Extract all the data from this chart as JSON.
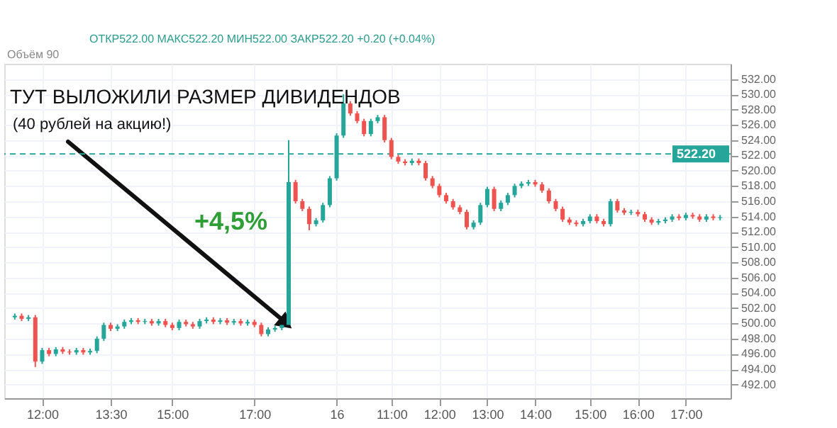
{
  "chart_data": {
    "type": "candlestick",
    "categories": [
      null,
      null,
      null,
      null,
      "12:00",
      null,
      null,
      null,
      null,
      null,
      null,
      null,
      null,
      null,
      "13:30",
      null,
      null,
      null,
      null,
      null,
      null,
      null,
      null,
      "15:00",
      null,
      null,
      null,
      null,
      null,
      null,
      null,
      null,
      null,
      null,
      null,
      "17:00",
      null,
      null,
      null,
      null,
      null,
      null,
      null,
      null,
      null,
      null,
      null,
      "16",
      null,
      null,
      null,
      null,
      null,
      null,
      null,
      "11:00",
      null,
      null,
      null,
      null,
      null,
      null,
      "12:00",
      null,
      null,
      null,
      null,
      null,
      null,
      "13:00",
      null,
      null,
      null,
      null,
      null,
      null,
      "14:00",
      null,
      null,
      null,
      null,
      null,
      null,
      null,
      "15:00",
      null,
      null,
      null,
      null,
      null,
      null,
      "16:00",
      null,
      null,
      null,
      null,
      null,
      null,
      "17:00",
      null,
      null,
      null,
      null,
      null
    ],
    "ohlc": [
      [
        500.8,
        501.3,
        500.5,
        501.0
      ],
      [
        501.0,
        501.3,
        500.3,
        500.6
      ],
      [
        500.6,
        501.1,
        500.3,
        500.8
      ],
      [
        500.8,
        501.1,
        494.3,
        495.0
      ],
      [
        495.0,
        496.8,
        494.7,
        496.5
      ],
      [
        496.5,
        496.8,
        495.7,
        496.0
      ],
      [
        496.0,
        496.9,
        495.7,
        496.6
      ],
      [
        496.6,
        496.9,
        496.0,
        496.3
      ],
      [
        496.3,
        496.6,
        495.9,
        496.2
      ],
      [
        496.2,
        496.8,
        495.9,
        496.5
      ],
      [
        496.5,
        496.8,
        495.9,
        496.2
      ],
      [
        496.2,
        496.7,
        495.9,
        496.4
      ],
      [
        496.4,
        498.3,
        496.1,
        498.0
      ],
      [
        498.0,
        500.1,
        497.7,
        499.8
      ],
      [
        499.8,
        500.1,
        499.0,
        499.3
      ],
      [
        499.3,
        499.9,
        499.0,
        499.6
      ],
      [
        499.6,
        500.5,
        499.3,
        500.2
      ],
      [
        500.2,
        500.7,
        499.9,
        500.4
      ],
      [
        500.4,
        500.7,
        499.9,
        500.2
      ],
      [
        500.2,
        500.6,
        499.9,
        500.3
      ],
      [
        500.3,
        500.6,
        499.7,
        500.0
      ],
      [
        500.0,
        500.6,
        499.7,
        500.3
      ],
      [
        500.3,
        500.6,
        499.5,
        499.8
      ],
      [
        499.8,
        500.1,
        499.1,
        499.4
      ],
      [
        499.4,
        500.5,
        499.1,
        500.2
      ],
      [
        500.2,
        500.5,
        499.6,
        499.9
      ],
      [
        499.9,
        500.2,
        499.3,
        499.6
      ],
      [
        499.6,
        500.6,
        499.3,
        500.3
      ],
      [
        500.3,
        500.8,
        500.0,
        500.5
      ],
      [
        500.5,
        500.8,
        499.9,
        500.2
      ],
      [
        500.2,
        500.7,
        499.9,
        500.4
      ],
      [
        500.4,
        500.7,
        499.8,
        500.1
      ],
      [
        500.1,
        500.6,
        499.8,
        500.3
      ],
      [
        500.3,
        500.6,
        499.7,
        500.0
      ],
      [
        500.0,
        500.5,
        499.7,
        500.2
      ],
      [
        500.2,
        500.5,
        499.5,
        499.8
      ],
      [
        499.8,
        500.1,
        498.3,
        498.6
      ],
      [
        498.6,
        499.5,
        498.3,
        499.2
      ],
      [
        499.2,
        499.7,
        498.9,
        499.4
      ],
      [
        499.4,
        500.1,
        499.1,
        499.8
      ],
      [
        499.8,
        524.0,
        499.5,
        518.5
      ],
      [
        518.5,
        518.8,
        515.7,
        516.0
      ],
      [
        516.0,
        516.3,
        514.7,
        515.0
      ],
      [
        515.0,
        515.3,
        512.2,
        513.0
      ],
      [
        513.0,
        513.8,
        512.7,
        513.5
      ],
      [
        513.5,
        515.8,
        513.2,
        515.5
      ],
      [
        515.5,
        519.3,
        515.2,
        519.0
      ],
      [
        519.0,
        524.9,
        518.7,
        524.6
      ],
      [
        524.6,
        530.0,
        524.3,
        528.8
      ],
      [
        528.8,
        529.1,
        527.2,
        527.5
      ],
      [
        527.5,
        527.8,
        526.2,
        526.5
      ],
      [
        526.5,
        526.8,
        524.5,
        524.8
      ],
      [
        524.8,
        526.8,
        524.5,
        526.5
      ],
      [
        526.5,
        527.3,
        526.2,
        527.0
      ],
      [
        527.0,
        527.3,
        523.7,
        524.0
      ],
      [
        524.0,
        524.3,
        521.5,
        521.8
      ],
      [
        521.8,
        522.1,
        520.9,
        521.2
      ],
      [
        521.2,
        521.5,
        520.7,
        521.0
      ],
      [
        521.0,
        521.6,
        520.7,
        521.3
      ],
      [
        521.3,
        521.6,
        520.7,
        521.0
      ],
      [
        521.0,
        521.3,
        518.7,
        519.0
      ],
      [
        519.0,
        519.3,
        517.7,
        518.0
      ],
      [
        518.0,
        518.3,
        516.5,
        516.8
      ],
      [
        516.8,
        517.1,
        515.7,
        516.0
      ],
      [
        516.0,
        516.3,
        514.9,
        515.2
      ],
      [
        515.2,
        515.5,
        514.3,
        514.6
      ],
      [
        514.6,
        514.9,
        512.3,
        512.6
      ],
      [
        512.6,
        513.5,
        512.3,
        513.2
      ],
      [
        513.2,
        515.8,
        512.9,
        515.5
      ],
      [
        515.5,
        517.9,
        515.2,
        517.6
      ],
      [
        517.6,
        517.9,
        514.7,
        515.0
      ],
      [
        515.0,
        516.1,
        514.7,
        515.8
      ],
      [
        515.8,
        517.1,
        515.5,
        516.8
      ],
      [
        516.8,
        518.3,
        516.5,
        518.0
      ],
      [
        518.0,
        518.6,
        517.7,
        518.3
      ],
      [
        518.3,
        518.8,
        518.0,
        518.5
      ],
      [
        518.5,
        518.8,
        517.9,
        518.2
      ],
      [
        518.2,
        518.5,
        517.1,
        517.4
      ],
      [
        517.4,
        517.7,
        515.7,
        516.0
      ],
      [
        516.0,
        516.3,
        514.7,
        515.0
      ],
      [
        515.0,
        515.3,
        513.3,
        513.6
      ],
      [
        513.6,
        513.9,
        512.9,
        513.2
      ],
      [
        513.2,
        513.5,
        512.7,
        513.0
      ],
      [
        513.0,
        513.7,
        512.7,
        513.4
      ],
      [
        513.4,
        514.3,
        513.1,
        514.0
      ],
      [
        514.0,
        514.3,
        513.1,
        513.4
      ],
      [
        513.4,
        513.7,
        512.7,
        513.0
      ],
      [
        513.0,
        516.3,
        512.7,
        516.0
      ],
      [
        516.0,
        516.3,
        514.5,
        514.8
      ],
      [
        514.8,
        515.1,
        514.2,
        514.5
      ],
      [
        514.5,
        514.9,
        514.2,
        514.6
      ],
      [
        514.6,
        514.9,
        514.0,
        514.3
      ],
      [
        514.3,
        514.6,
        513.3,
        513.6
      ],
      [
        513.6,
        513.9,
        512.9,
        513.2
      ],
      [
        513.2,
        513.7,
        512.9,
        513.4
      ],
      [
        513.4,
        513.9,
        513.1,
        513.6
      ],
      [
        513.6,
        514.3,
        513.3,
        514.0
      ],
      [
        514.0,
        514.3,
        513.5,
        513.8
      ],
      [
        513.8,
        514.5,
        513.5,
        514.2
      ],
      [
        514.2,
        514.5,
        513.7,
        514.0
      ],
      [
        514.0,
        514.3,
        513.3,
        513.6
      ],
      [
        513.6,
        514.3,
        513.3,
        514.0
      ],
      [
        514.0,
        514.3,
        513.5,
        513.8
      ],
      [
        513.8,
        514.2,
        513.5,
        513.9
      ]
    ],
    "colors": [
      "#26a69a",
      "#ef5350",
      "#26a69a",
      "#ef5350",
      "#26a69a",
      "#ef5350",
      "#26a69a",
      "#ef5350",
      "#ef5350",
      "#26a69a",
      "#ef5350",
      "#26a69a",
      "#26a69a",
      "#26a69a",
      "#ef5350",
      "#26a69a",
      "#26a69a",
      "#26a69a",
      "#ef5350",
      "#26a69a",
      "#ef5350",
      "#26a69a",
      "#ef5350",
      "#ef5350",
      "#26a69a",
      "#ef5350",
      "#ef5350",
      "#26a69a",
      "#26a69a",
      "#ef5350",
      "#26a69a",
      "#ef5350",
      "#26a69a",
      "#ef5350",
      "#26a69a",
      "#ef5350",
      "#ef5350",
      "#26a69a",
      "#26a69a",
      "#26a69a",
      "#26a69a",
      "#ef5350",
      "#ef5350",
      "#ef5350",
      "#26a69a",
      "#26a69a",
      "#26a69a",
      "#26a69a",
      "#26a69a",
      "#ef5350",
      "#ef5350",
      "#ef5350",
      "#26a69a",
      "#26a69a",
      "#ef5350",
      "#ef5350",
      "#ef5350",
      "#ef5350",
      "#26a69a",
      "#ef5350",
      "#ef5350",
      "#ef5350",
      "#ef5350",
      "#ef5350",
      "#ef5350",
      "#ef5350",
      "#ef5350",
      "#26a69a",
      "#26a69a",
      "#26a69a",
      "#ef5350",
      "#26a69a",
      "#26a69a",
      "#26a69a",
      "#26a69a",
      "#26a69a",
      "#ef5350",
      "#ef5350",
      "#ef5350",
      "#ef5350",
      "#ef5350",
      "#ef5350",
      "#ef5350",
      "#26a69a",
      "#26a69a",
      "#ef5350",
      "#ef5350",
      "#26a69a",
      "#ef5350",
      "#ef5350",
      "#26a69a",
      "#ef5350",
      "#ef5350",
      "#ef5350",
      "#26a69a",
      "#26a69a",
      "#26a69a",
      "#ef5350",
      "#26a69a",
      "#ef5350",
      "#ef5350",
      "#26a69a",
      "#ef5350",
      "#26a69a"
    ],
    "ylim": [
      490.2,
      534
    ],
    "yticks": [
      {
        "value": 492,
        "label": "492.00"
      },
      {
        "value": 494,
        "label": "494.00"
      },
      {
        "value": 496,
        "label": "496.00"
      },
      {
        "value": 498,
        "label": "498.00"
      },
      {
        "value": 500,
        "label": "500.00"
      },
      {
        "value": 502,
        "label": "502.00"
      },
      {
        "value": 504,
        "label": "504.00"
      },
      {
        "value": 506,
        "label": "506.00"
      },
      {
        "value": 508,
        "label": "508.00"
      },
      {
        "value": 510,
        "label": "510.00"
      },
      {
        "value": 512,
        "label": "512.00"
      },
      {
        "value": 514,
        "label": "514.00"
      },
      {
        "value": 516,
        "label": "516.00"
      },
      {
        "value": 518,
        "label": "518.00"
      },
      {
        "value": 520,
        "label": "520.00"
      },
      {
        "value": 522,
        "label": "522.00"
      },
      {
        "value": 524,
        "label": "524.00"
      },
      {
        "value": 526,
        "label": "526.00"
      },
      {
        "value": 528,
        "label": "528.00"
      },
      {
        "value": 530,
        "label": "530.00"
      },
      {
        "value": 532,
        "label": "532.00"
      }
    ],
    "ref_lines": [
      {
        "axis": "y",
        "value": 522.2,
        "label": "522.20",
        "color": "#26a69a",
        "line_style": "dashed"
      }
    ],
    "grid": true,
    "annotations": [
      "ОТКР522.00 МАКС522.20 МИН522.00 ЗАКР522.20 +0.20 (+0.04%)",
      "Объём 90",
      "ТУТ ВЫЛОЖИЛИ РАЗМЕР ДИВИДЕНДОВ",
      "(40 рублей на акцию!)",
      "+4,5%"
    ]
  }
}
